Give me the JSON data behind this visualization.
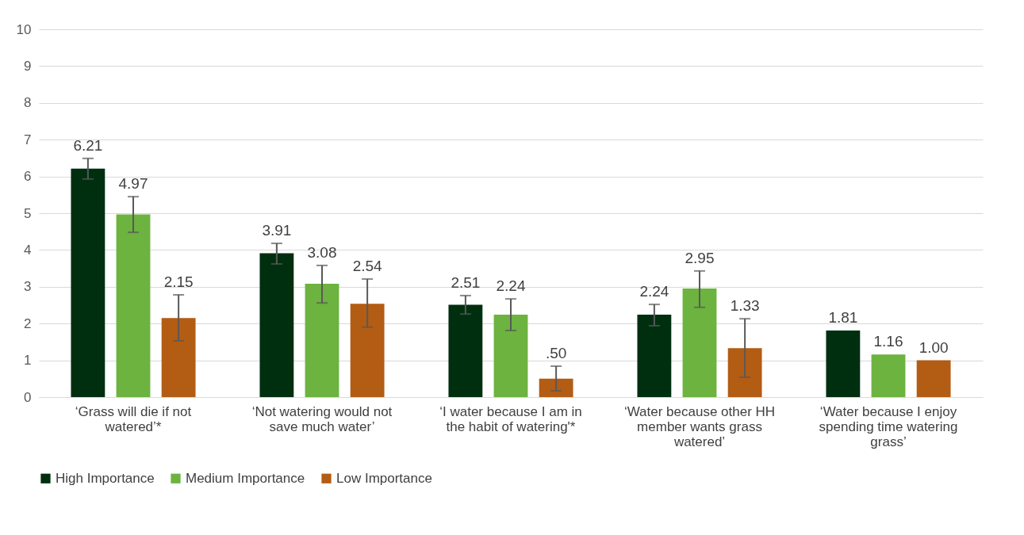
{
  "chart_data": {
    "type": "bar",
    "categories": [
      "‘Grass will die if not watered’*",
      "‘Not watering would not save much water’",
      "‘I water because I am in the habit of watering'*",
      "‘Water because other HH member wants grass watered’",
      "‘Water because I enjoy spending time watering grass’"
    ],
    "series": [
      {
        "name": "High Importance",
        "color": "#002f10",
        "values": [
          6.21,
          3.91,
          2.51,
          2.24,
          1.81
        ],
        "value_labels": [
          "6.21",
          "3.91",
          "2.51",
          "2.24",
          "1.81"
        ],
        "errors": [
          [
            5.93,
            6.49
          ],
          [
            3.62,
            4.18
          ],
          [
            2.26,
            2.76
          ],
          [
            1.94,
            2.52
          ],
          null
        ]
      },
      {
        "name": "Medium Importance",
        "color": "#6db33f",
        "values": [
          4.97,
          3.08,
          2.24,
          2.95,
          1.16
        ],
        "value_labels": [
          "4.97",
          "3.08",
          "2.24",
          "2.95",
          "1.16"
        ],
        "errors": [
          [
            4.48,
            5.45
          ],
          [
            2.56,
            3.58
          ],
          [
            1.81,
            2.67
          ],
          [
            2.44,
            3.43
          ],
          null
        ]
      },
      {
        "name": "Low Importance",
        "color": "#b35c14",
        "values": [
          2.15,
          2.54,
          0.5,
          1.33,
          1.0
        ],
        "value_labels": [
          "2.15",
          "2.54",
          ".50",
          "1.33",
          "1.00"
        ],
        "errors": [
          [
            1.53,
            2.78
          ],
          [
            1.9,
            3.21
          ],
          [
            0.17,
            0.84
          ],
          [
            0.54,
            2.13
          ],
          null
        ]
      }
    ],
    "ylim": [
      0,
      10
    ],
    "yticks": [
      0,
      1,
      2,
      3,
      4,
      5,
      6,
      7,
      8,
      9,
      10
    ],
    "grid": "y",
    "legend": "bottom"
  }
}
